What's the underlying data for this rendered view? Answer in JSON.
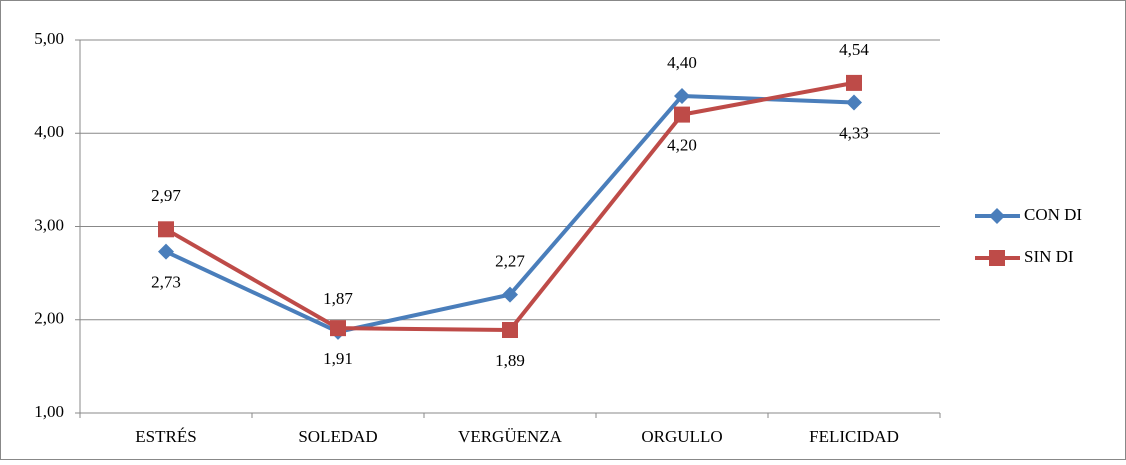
{
  "chart_data": {
    "type": "line",
    "categories": [
      "ESTRÉS",
      "SOLEDAD",
      "VERGÜENZA",
      "ORGULLO",
      "FELICIDAD"
    ],
    "series": [
      {
        "name": "CON DI",
        "color": "#4a7ebb",
        "marker": "diamond",
        "values": [
          2.73,
          1.87,
          2.27,
          4.4,
          4.33
        ],
        "value_labels": [
          "2,73",
          "1,87",
          "2,27",
          "4,40",
          "4,33"
        ]
      },
      {
        "name": "SIN DI",
        "color": "#be4b48",
        "marker": "square",
        "values": [
          2.97,
          1.91,
          1.89,
          4.2,
          4.54
        ],
        "value_labels": [
          "2,97",
          "1,91",
          "1,89",
          "4,20",
          "4,54"
        ]
      }
    ],
    "ylim": [
      1,
      5
    ],
    "yticks": [
      {
        "value": 1,
        "label": "1,00"
      },
      {
        "value": 2,
        "label": "2,00"
      },
      {
        "value": 3,
        "label": "3,00"
      },
      {
        "value": 4,
        "label": "4,00"
      },
      {
        "value": 5,
        "label": "5,00"
      }
    ],
    "grid": true,
    "legend": "right"
  }
}
